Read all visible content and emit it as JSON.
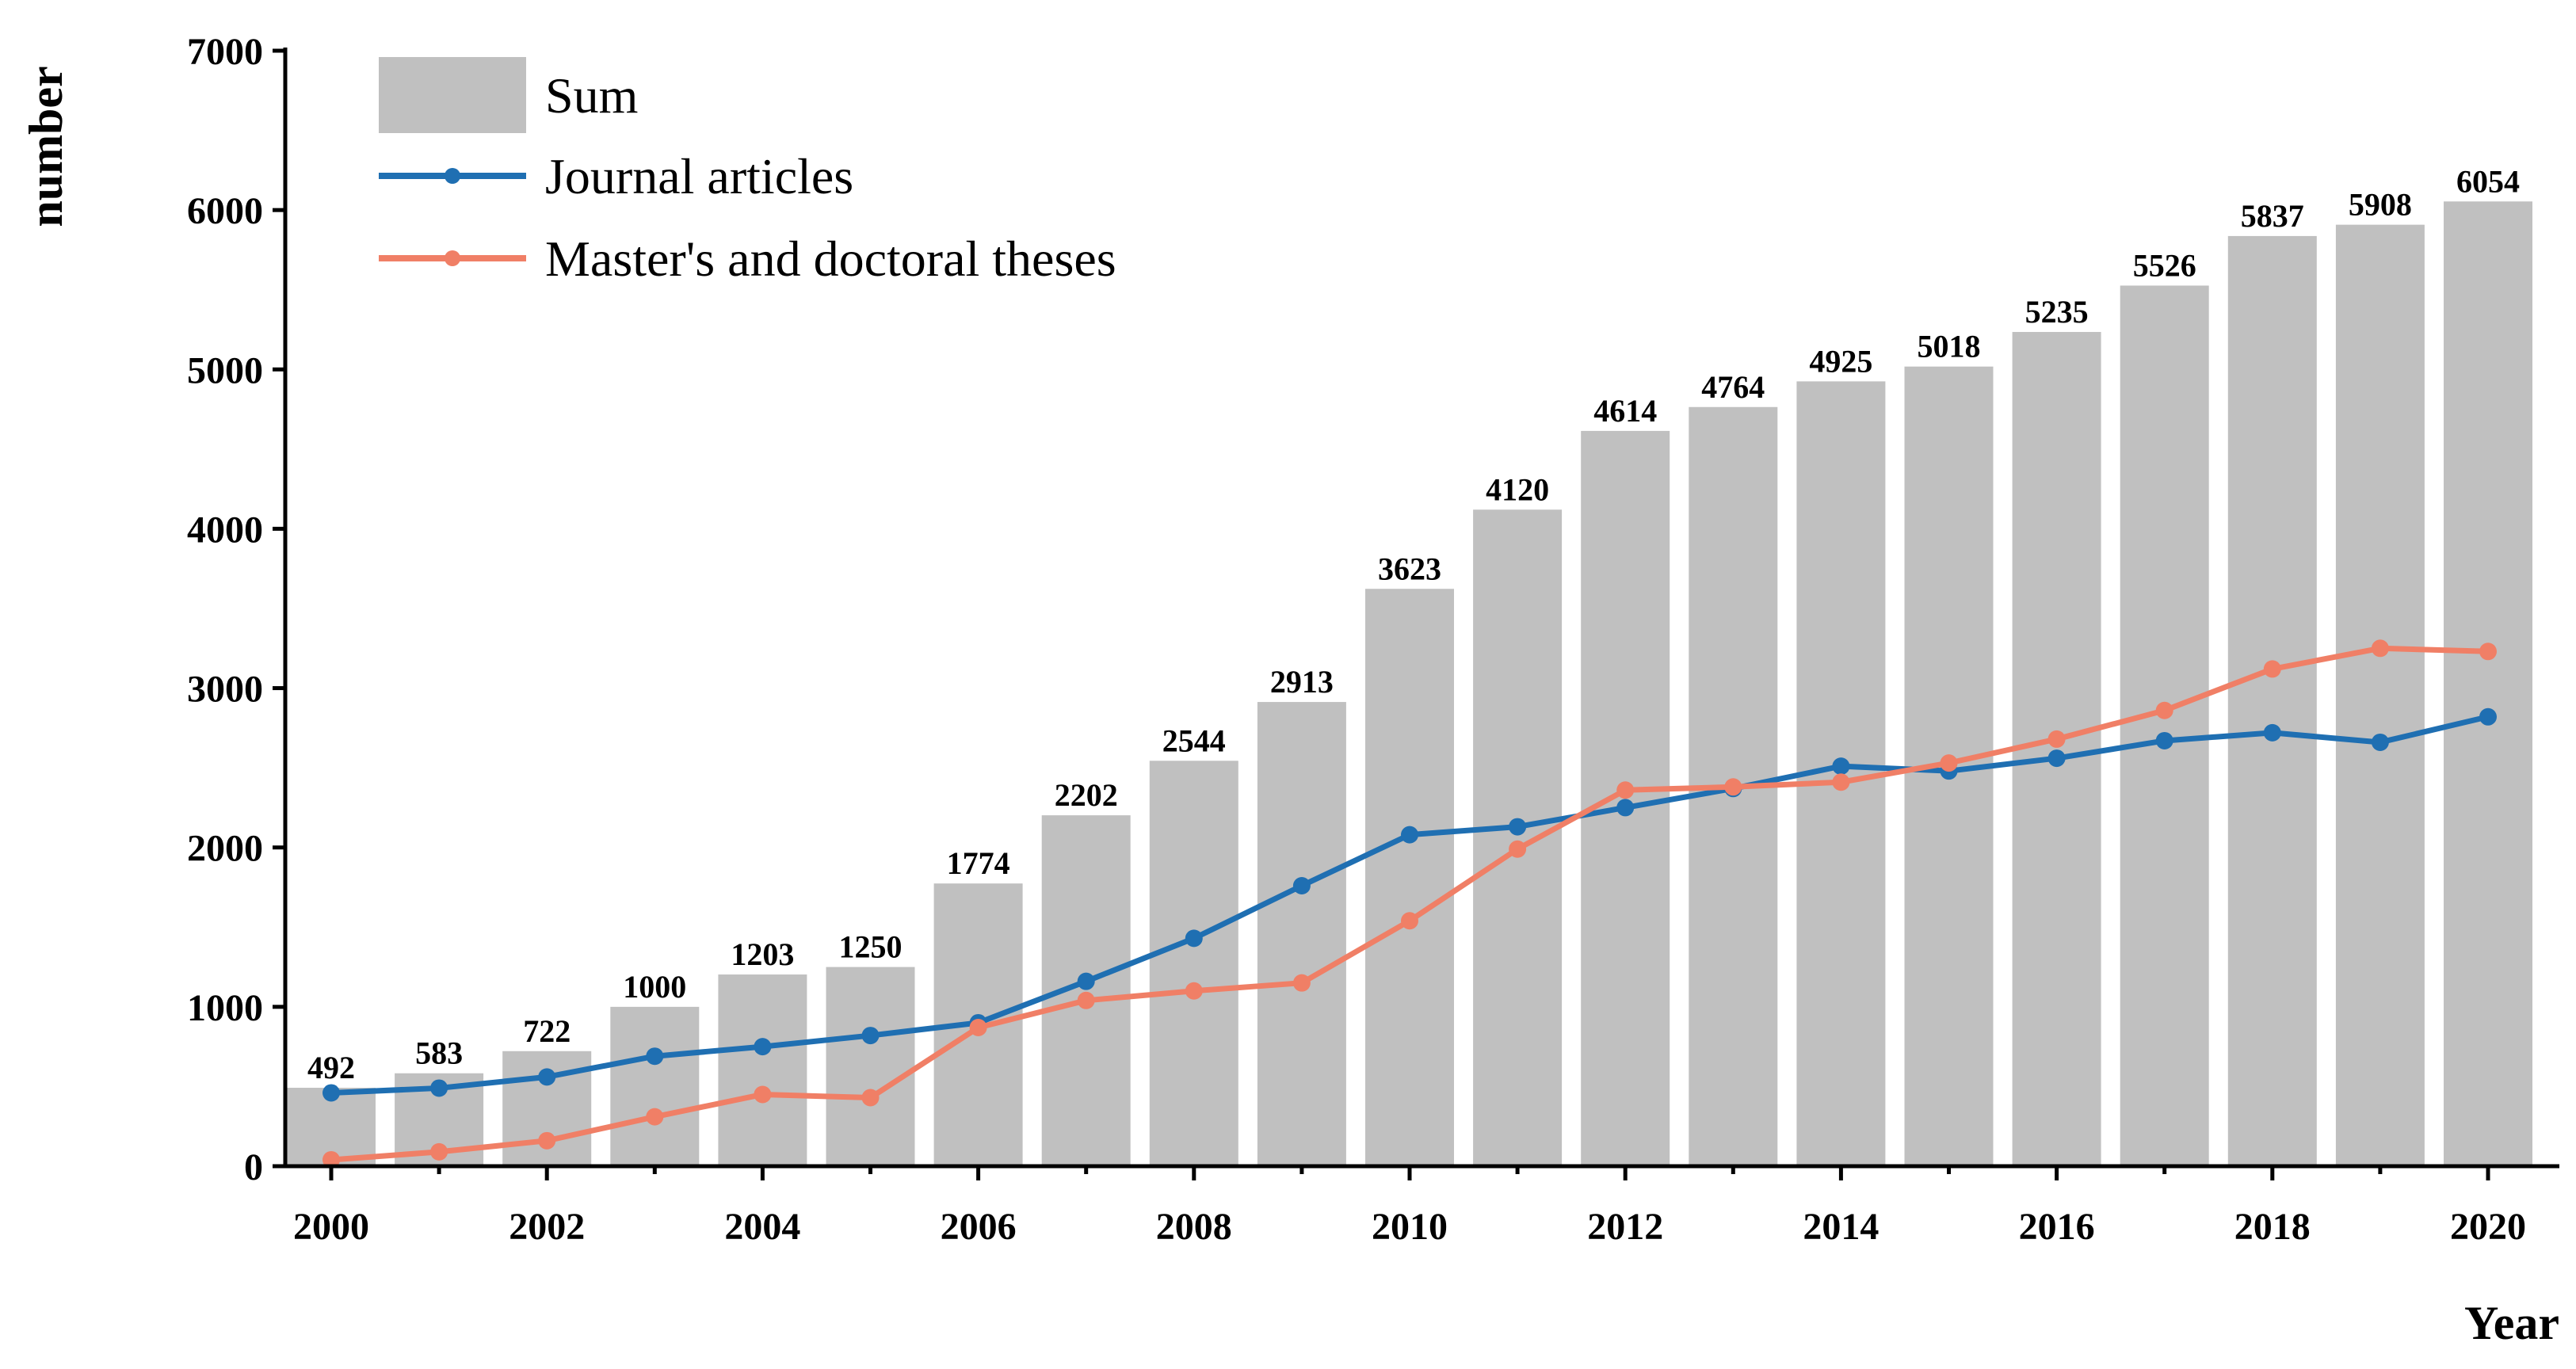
{
  "chart_data": {
    "type": "bar",
    "title": "",
    "xlabel": "Year",
    "ylabel": "number",
    "ylim": [
      0,
      7000
    ],
    "yticks": [
      0,
      1000,
      2000,
      3000,
      4000,
      5000,
      6000,
      7000
    ],
    "xticks": [
      2000,
      2002,
      2004,
      2006,
      2008,
      2010,
      2012,
      2014,
      2016,
      2018,
      2020
    ],
    "x": [
      2000,
      2001,
      2002,
      2003,
      2004,
      2005,
      2006,
      2007,
      2008,
      2009,
      2010,
      2011,
      2012,
      2013,
      2014,
      2015,
      2016,
      2017,
      2018,
      2019,
      2020
    ],
    "series": [
      {
        "name": "Sum",
        "type": "bar",
        "color": "#c0c0c0",
        "values": [
          492,
          583,
          722,
          1000,
          1203,
          1250,
          1774,
          2202,
          2544,
          2913,
          3623,
          4120,
          4614,
          4764,
          4925,
          5018,
          5235,
          5526,
          5837,
          5908,
          6054
        ],
        "data_labels": [
          "492",
          "583",
          "722",
          "1000",
          "1203",
          "1250",
          "1774",
          "2202",
          "2544",
          "2913",
          "3623",
          "4120",
          "4614",
          "4764",
          "4925",
          "5018",
          "5235",
          "5526",
          "5837",
          "5908",
          "6054"
        ]
      },
      {
        "name": "Journal articles",
        "type": "line",
        "color": "#1f6fb2",
        "values": [
          460,
          490,
          560,
          690,
          750,
          820,
          900,
          1160,
          1430,
          1760,
          2080,
          2130,
          2250,
          2370,
          2510,
          2480,
          2560,
          2670,
          2720,
          2660,
          2820
        ]
      },
      {
        "name": "Master's and doctoral theses",
        "type": "line",
        "color": "#f07f66",
        "values": [
          40,
          90,
          160,
          310,
          450,
          430,
          870,
          1040,
          1100,
          1150,
          1540,
          1990,
          2360,
          2380,
          2410,
          2530,
          2680,
          2860,
          3120,
          3250,
          3230
        ]
      }
    ],
    "legend": {
      "position": "top-left",
      "entries": [
        "Sum",
        "Journal articles",
        "Master's and doctoral theses"
      ]
    }
  }
}
